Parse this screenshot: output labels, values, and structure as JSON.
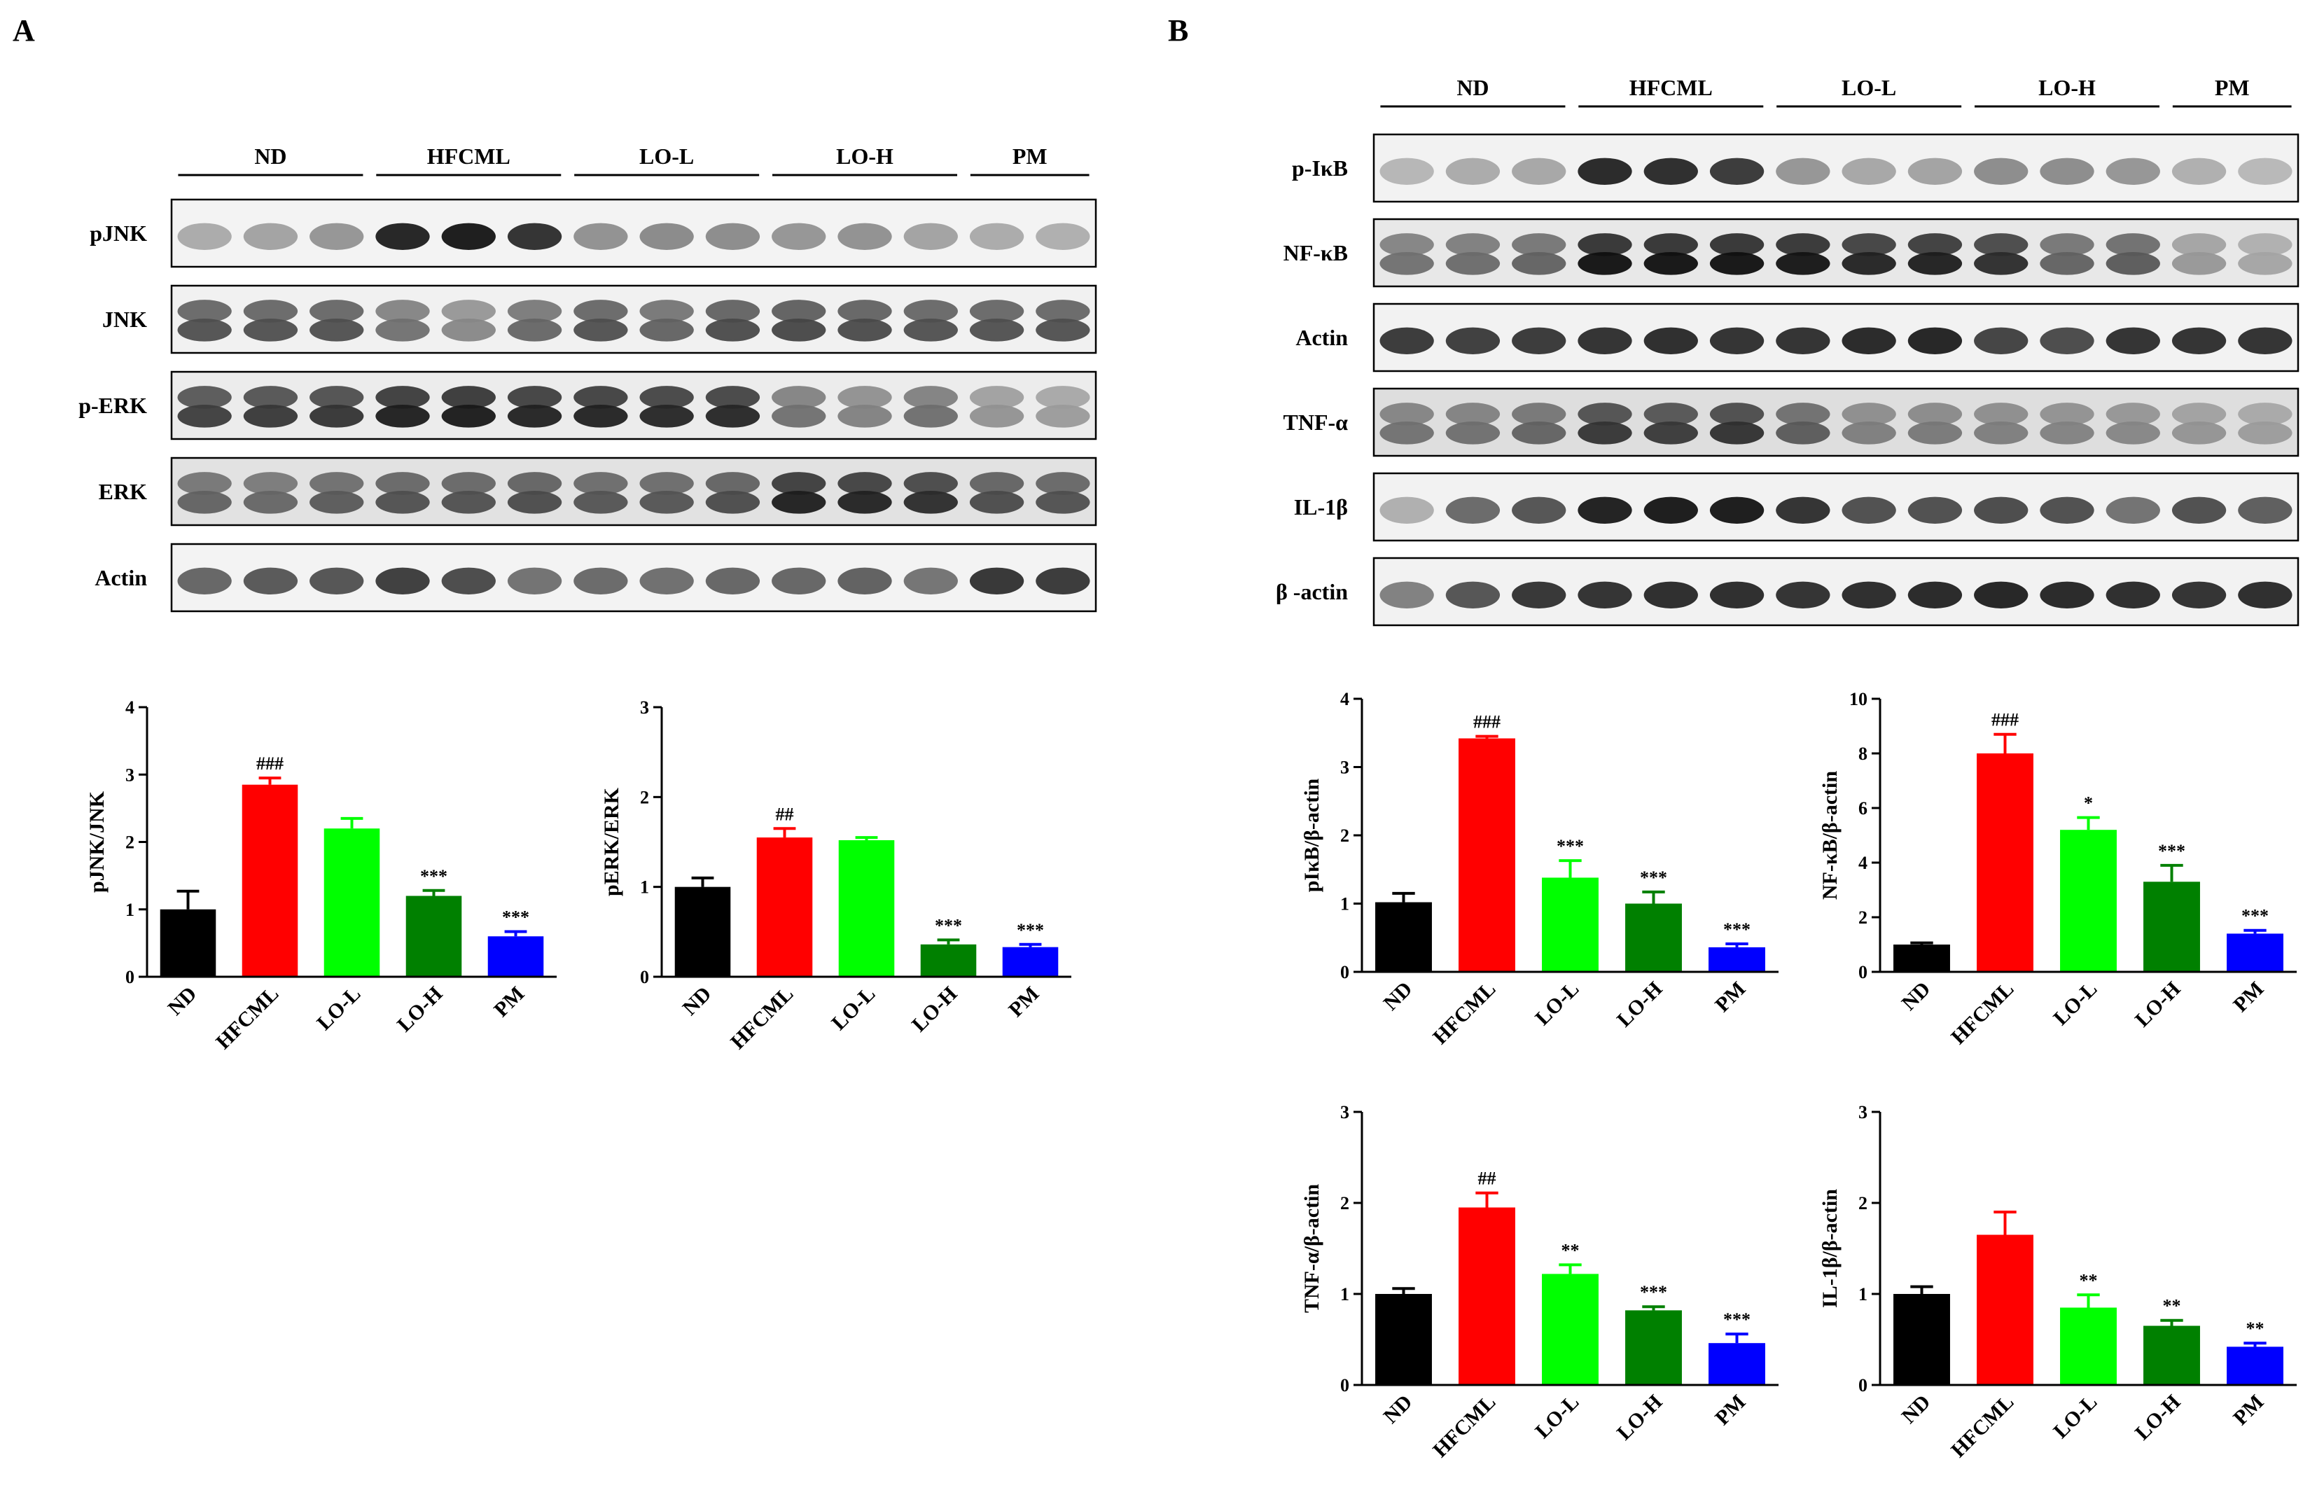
{
  "panels": [
    {
      "letter": "A",
      "groups": [
        "ND",
        "HFCML",
        "LO-L",
        "LO-H",
        "PM"
      ],
      "blots": [
        {
          "label": "pJNK",
          "bg": "#f3f3f3",
          "bands": [
            [
              0.3,
              0.34,
              0.4
            ],
            [
              0.92,
              0.96,
              0.86
            ],
            [
              0.42,
              0.45,
              0.44
            ],
            [
              0.4,
              0.42,
              0.34
            ],
            [
              0.3,
              0.28
            ]
          ]
        },
        {
          "label": "JNK",
          "bg": "#f1f1f1",
          "bands": [
            [
              0.7,
              0.7,
              0.7
            ],
            [
              0.55,
              0.45,
              0.6
            ],
            [
              0.7,
              0.62,
              0.72
            ],
            [
              0.74,
              0.72,
              0.7
            ],
            [
              0.7,
              0.7
            ]
          ]
        },
        {
          "label": "p-ERK",
          "bg": "#ececec",
          "bands": [
            [
              0.78,
              0.8,
              0.82
            ],
            [
              0.92,
              0.94,
              0.9
            ],
            [
              0.9,
              0.88,
              0.88
            ],
            [
              0.55,
              0.48,
              0.56
            ],
            [
              0.4,
              0.36
            ]
          ]
        },
        {
          "label": "ERK",
          "bg": "#e2e2e2",
          "bands": [
            [
              0.62,
              0.6,
              0.66
            ],
            [
              0.7,
              0.7,
              0.72
            ],
            [
              0.68,
              0.68,
              0.72
            ],
            [
              0.92,
              0.9,
              0.86
            ],
            [
              0.72,
              0.7
            ]
          ]
        },
        {
          "label": "Actin",
          "bg": "#f3f3f3",
          "bands": [
            [
              0.62,
              0.68,
              0.7
            ],
            [
              0.8,
              0.74,
              0.56
            ],
            [
              0.6,
              0.58,
              0.62
            ],
            [
              0.62,
              0.64,
              0.55
            ],
            [
              0.84,
              0.82
            ]
          ]
        }
      ]
    },
    {
      "letter": "B",
      "groups": [
        "ND",
        "HFCML",
        "LO-L",
        "LO-H",
        "PM"
      ],
      "blots": [
        {
          "label": "p-IκB",
          "bg": "#f2f2f2",
          "bands": [
            [
              0.25,
              0.3,
              0.32
            ],
            [
              0.9,
              0.88,
              0.82
            ],
            [
              0.4,
              0.32,
              0.34
            ],
            [
              0.44,
              0.44,
              0.4
            ],
            [
              0.28,
              0.24
            ]
          ]
        },
        {
          "label": "NF-κB",
          "bg": "#e8e8e8",
          "bands": [
            [
              0.55,
              0.58,
              0.62
            ],
            [
              0.98,
              0.98,
              0.98
            ],
            [
              0.96,
              0.9,
              0.92
            ],
            [
              0.86,
              0.62,
              0.66
            ],
            [
              0.38,
              0.32
            ]
          ]
        },
        {
          "label": "Actin",
          "bg": "#f2f2f2",
          "bands": [
            [
              0.82,
              0.8,
              0.82
            ],
            [
              0.86,
              0.88,
              0.86
            ],
            [
              0.86,
              0.9,
              0.92
            ],
            [
              0.78,
              0.74,
              0.86
            ],
            [
              0.86,
              0.86
            ]
          ]
        },
        {
          "label": "TNF-α",
          "bg": "#dedede",
          "bands": [
            [
              0.55,
              0.56,
              0.62
            ],
            [
              0.82,
              0.8,
              0.84
            ],
            [
              0.66,
              0.5,
              0.52
            ],
            [
              0.5,
              0.48,
              0.46
            ],
            [
              0.4,
              0.36
            ]
          ]
        },
        {
          "label": "IL-1β",
          "bg": "#f2f2f2",
          "bands": [
            [
              0.28,
              0.6,
              0.7
            ],
            [
              0.94,
              0.96,
              0.96
            ],
            [
              0.86,
              0.72,
              0.72
            ],
            [
              0.74,
              0.72,
              0.56
            ],
            [
              0.72,
              0.66
            ]
          ]
        },
        {
          "label": "β -actin",
          "bg": "#f2f2f2",
          "bands": [
            [
              0.5,
              0.7,
              0.84
            ],
            [
              0.86,
              0.88,
              0.88
            ],
            [
              0.86,
              0.88,
              0.9
            ],
            [
              0.92,
              0.9,
              0.88
            ],
            [
              0.86,
              0.88
            ]
          ]
        }
      ]
    }
  ],
  "chart_data": [
    {
      "type": "bar",
      "panel": "A",
      "ylabel": "pJNK/JNK",
      "ylim": [
        0,
        4
      ],
      "ticks": [
        0,
        1,
        2,
        3,
        4
      ],
      "categories": [
        "ND",
        "HFCML",
        "LO-L",
        "LO-H",
        "PM"
      ],
      "values": [
        1.0,
        2.85,
        2.2,
        1.2,
        0.6
      ],
      "errors": [
        0.27,
        0.1,
        0.15,
        0.08,
        0.07
      ],
      "annotations": [
        "",
        "###",
        "",
        "***",
        "***"
      ]
    },
    {
      "type": "bar",
      "panel": "A",
      "ylabel": "pERK/ERK",
      "ylim": [
        0,
        3
      ],
      "ticks": [
        0,
        1,
        2,
        3
      ],
      "categories": [
        "ND",
        "HFCML",
        "LO-L",
        "LO-H",
        "PM"
      ],
      "values": [
        1.0,
        1.55,
        1.52,
        0.36,
        0.33
      ],
      "errors": [
        0.1,
        0.1,
        0.03,
        0.05,
        0.03
      ],
      "annotations": [
        "",
        "##",
        "",
        "***",
        "***"
      ]
    },
    {
      "type": "bar",
      "panel": "B",
      "ylabel": "pIκB/β-actin",
      "ylim": [
        0,
        4
      ],
      "ticks": [
        0,
        1,
        2,
        3,
        4
      ],
      "categories": [
        "ND",
        "HFCML",
        "LO-L",
        "LO-H",
        "PM"
      ],
      "values": [
        1.02,
        3.42,
        1.38,
        1.0,
        0.36
      ],
      "errors": [
        0.13,
        0.03,
        0.25,
        0.17,
        0.05
      ],
      "annotations": [
        "",
        "###",
        "***",
        "***",
        "***"
      ]
    },
    {
      "type": "bar",
      "panel": "B",
      "ylabel": "NF-κB/β-actin",
      "ylim": [
        0,
        10
      ],
      "ticks": [
        0,
        2,
        4,
        6,
        8,
        10
      ],
      "categories": [
        "ND",
        "HFCML",
        "LO-L",
        "LO-H",
        "PM"
      ],
      "values": [
        1.0,
        8.0,
        5.2,
        3.3,
        1.4
      ],
      "errors": [
        0.06,
        0.7,
        0.45,
        0.6,
        0.12
      ],
      "annotations": [
        "",
        "###",
        "*",
        "***",
        "***"
      ]
    },
    {
      "type": "bar",
      "panel": "B",
      "ylabel": "TNF-α/β-actin",
      "ylim": [
        0,
        3
      ],
      "ticks": [
        0,
        1,
        2,
        3
      ],
      "categories": [
        "ND",
        "HFCML",
        "LO-L",
        "LO-H",
        "PM"
      ],
      "values": [
        1.0,
        1.95,
        1.22,
        0.82,
        0.46
      ],
      "errors": [
        0.06,
        0.16,
        0.1,
        0.04,
        0.1
      ],
      "annotations": [
        "",
        "##",
        "**",
        "***",
        "***"
      ]
    },
    {
      "type": "bar",
      "panel": "B",
      "ylabel": "IL-1β/β-actin",
      "ylim": [
        0,
        3
      ],
      "ticks": [
        0,
        1,
        2,
        3
      ],
      "categories": [
        "ND",
        "HFCML",
        "LO-L",
        "LO-H",
        "PM"
      ],
      "values": [
        1.0,
        1.65,
        0.85,
        0.65,
        0.42
      ],
      "errors": [
        0.08,
        0.25,
        0.14,
        0.06,
        0.04
      ],
      "annotations": [
        "",
        "",
        "**",
        "**",
        "**"
      ]
    }
  ],
  "colors": {
    "ND": "#000000",
    "HFCML": "#ff0000",
    "LO-L": "#00ff00",
    "LO-H": "#008000",
    "PM": "#0000ff"
  }
}
